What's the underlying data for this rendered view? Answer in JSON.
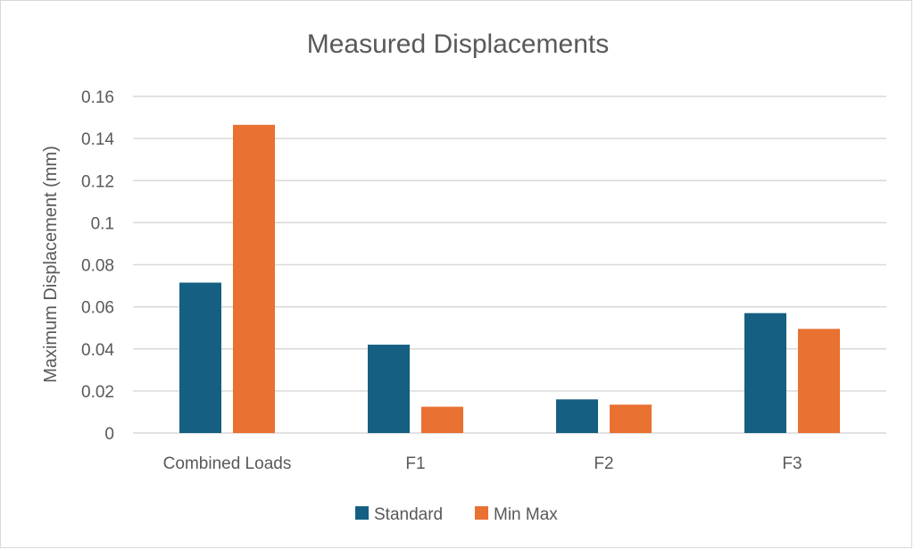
{
  "chart_data": {
    "type": "bar",
    "title": "Measured Displacements",
    "xlabel": "",
    "ylabel": "Maximum Displacement (mm)",
    "categories": [
      "Combined Loads",
      "F1",
      "F2",
      "F3"
    ],
    "series": [
      {
        "name": "Standard",
        "color": "#156082",
        "values": [
          0.0715,
          0.042,
          0.016,
          0.057
        ]
      },
      {
        "name": "Min Max",
        "color": "#E97132",
        "values": [
          0.1465,
          0.0125,
          0.0135,
          0.0495
        ]
      }
    ],
    "ylim": [
      0,
      0.16
    ],
    "yticks": [
      0,
      0.02,
      0.04,
      0.06,
      0.08,
      0.1,
      0.12,
      0.14,
      0.16
    ],
    "ytick_labels": [
      "0",
      "0.02",
      "0.04",
      "0.06",
      "0.08",
      "0.1",
      "0.12",
      "0.14",
      "0.16"
    ],
    "grid": true,
    "legend_position": "bottom"
  }
}
